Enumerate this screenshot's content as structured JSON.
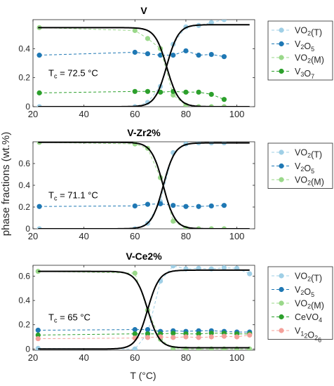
{
  "figure": {
    "shared_ylabel": "phase fractions (wt.%)",
    "shared_xlabel": "T (°C)"
  },
  "chart_data": [
    {
      "type": "line",
      "title": "V",
      "xlim": [
        20,
        107
      ],
      "ylim": [
        0,
        0.6
      ],
      "xticks": [
        20,
        40,
        60,
        80,
        100
      ],
      "yticks": [
        0,
        0.2,
        0.4
      ],
      "show_xticklabels": true,
      "annotation": "T_c = 72.5 °C",
      "tc": 72.5,
      "series": [
        {
          "name": "VO2(T)",
          "color": "#9fcfe6",
          "x": [
            22.5,
            60,
            65,
            70,
            75,
            80,
            85,
            90,
            95
          ],
          "y": [
            0.0,
            0.0,
            0.03,
            0.14,
            0.43,
            0.55,
            0.56,
            0.58,
            0.6
          ]
        },
        {
          "name": "V2O5",
          "color": "#1f78b4",
          "x": [
            22.5,
            60,
            65,
            70,
            75,
            80,
            85,
            90,
            95
          ],
          "y": [
            0.355,
            0.375,
            0.365,
            0.355,
            0.355,
            0.385,
            0.355,
            0.36,
            0.345
          ]
        },
        {
          "name": "VO2(M)",
          "color": "#9ad88a",
          "x": [
            22.5,
            60,
            65,
            70,
            75,
            80,
            85,
            90,
            95
          ],
          "y": [
            0.545,
            0.525,
            0.47,
            0.4,
            0.08,
            0.01,
            0.0,
            0.0,
            0.0
          ]
        },
        {
          "name": "V3O7",
          "color": "#2ca02c",
          "x": [
            22.5,
            60,
            65,
            70,
            75,
            80,
            85,
            90,
            95
          ],
          "y": [
            0.095,
            0.105,
            0.105,
            0.1,
            0.105,
            0.1,
            0.1,
            0.085,
            0.05
          ]
        }
      ],
      "fits": [
        {
          "kind": "rise",
          "low": 0.0,
          "high": 0.565
        },
        {
          "kind": "fall",
          "low": 0.0,
          "high": 0.545
        }
      ]
    },
    {
      "type": "line",
      "title": "V-Zr2%",
      "xlim": [
        20,
        107
      ],
      "ylim": [
        0,
        0.8
      ],
      "xticks": [
        20,
        40,
        60,
        80,
        100
      ],
      "yticks": [
        0,
        0.2,
        0.4,
        0.6
      ],
      "show_xticklabels": true,
      "annotation": "T_c = 71.1 °C",
      "tc": 71.1,
      "series": [
        {
          "name": "VO2(T)",
          "color": "#9fcfe6",
          "x": [
            22.5,
            60,
            65,
            70,
            75,
            80,
            85,
            90,
            95
          ],
          "y": [
            0.0,
            0.0,
            0.05,
            0.25,
            0.7,
            0.78,
            0.79,
            0.79,
            0.79
          ]
        },
        {
          "name": "V2O5",
          "color": "#1f78b4",
          "x": [
            22.5,
            60,
            65,
            70,
            75,
            80,
            85,
            90,
            95
          ],
          "y": [
            0.205,
            0.21,
            0.225,
            0.23,
            0.215,
            0.205,
            0.205,
            0.21,
            0.215
          ]
        },
        {
          "name": "VO2(M)",
          "color": "#9ad88a",
          "x": [
            22.5,
            60,
            65,
            70,
            75,
            80,
            85,
            90,
            95
          ],
          "y": [
            0.795,
            0.78,
            0.74,
            0.47,
            0.07,
            0.005,
            0.0,
            0.0,
            0.0
          ]
        }
      ],
      "fits": [
        {
          "kind": "rise",
          "low": 0.0,
          "high": 0.79
        },
        {
          "kind": "fall",
          "low": 0.0,
          "high": 0.795
        }
      ]
    },
    {
      "type": "line",
      "title": "V-Ce2%",
      "xlim": [
        20,
        107
      ],
      "ylim": [
        -0.01,
        0.69
      ],
      "xticks": [
        20,
        40,
        60,
        80,
        100
      ],
      "yticks": [
        0,
        0.2,
        0.4,
        0.6
      ],
      "show_xticklabels": true,
      "annotation": "T_c = 65 °C",
      "tc": 65,
      "series": [
        {
          "name": "VO2(T)",
          "color": "#9fcfe6",
          "x": [
            22,
            60,
            65,
            70,
            75,
            80,
            85,
            90,
            95,
            100,
            105
          ],
          "y": [
            0.005,
            0.0,
            0.13,
            0.56,
            0.685,
            0.66,
            0.665,
            0.66,
            0.67,
            0.665,
            0.62
          ]
        },
        {
          "name": "V2O5",
          "color": "#1f78b4",
          "x": [
            22,
            60,
            65,
            70,
            75,
            80,
            85,
            90,
            95,
            100,
            105
          ],
          "y": [
            0.155,
            0.16,
            0.16,
            0.145,
            0.15,
            0.145,
            0.15,
            0.15,
            0.145,
            0.14,
            0.14
          ]
        },
        {
          "name": "VO2(M)",
          "color": "#9ad88a",
          "x": [
            22,
            60,
            65,
            70,
            75,
            80,
            85,
            90,
            95,
            100,
            105
          ],
          "y": [
            0.64,
            0.625,
            0.32,
            0.08,
            0.005,
            0.0,
            0.0,
            0.0,
            0.0,
            0.0,
            0.0
          ]
        },
        {
          "name": "CeVO4",
          "color": "#2ca02c",
          "x": [
            22,
            60,
            65,
            70,
            75,
            80,
            85,
            90,
            95,
            100,
            105
          ],
          "y": [
            0.115,
            0.125,
            0.125,
            0.125,
            0.13,
            0.125,
            0.125,
            0.13,
            0.13,
            0.125,
            0.125
          ]
        },
        {
          "name": "V12O26",
          "color": "#f4a09a",
          "x": [
            22,
            60,
            65,
            70,
            75,
            80,
            85,
            90,
            95,
            100,
            105
          ],
          "y": [
            0.085,
            0.09,
            0.095,
            0.1,
            0.095,
            0.1,
            0.095,
            0.1,
            0.105,
            0.1,
            0.115
          ]
        }
      ],
      "fits": [
        {
          "kind": "rise",
          "low": 0.0,
          "high": 0.65
        },
        {
          "kind": "fall",
          "low": 0.01,
          "high": 0.64
        }
      ]
    }
  ]
}
